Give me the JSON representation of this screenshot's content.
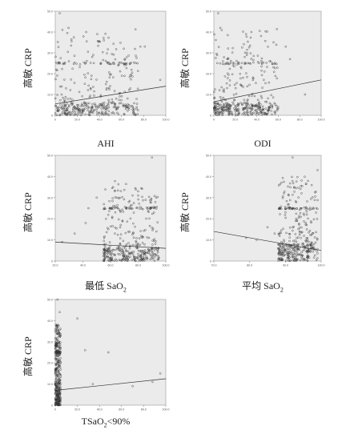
{
  "chart_data": [
    {
      "type": "scatter",
      "ylabel": "高敏 CRP",
      "xlabel": "AHI",
      "xlim": [
        0,
        100
      ],
      "ylim": [
        0,
        50
      ],
      "xticks": [
        "0",
        "20.0",
        "40.0",
        "60.0",
        "80.0",
        "100.0"
      ],
      "yticks": [
        "0",
        "10.0",
        "20.0",
        "30.0",
        "40.0",
        "50.0"
      ],
      "fit_line": {
        "x": [
          0,
          100
        ],
        "y": [
          5.5,
          14.0
        ]
      },
      "cluster": {
        "x_range": [
          0,
          75
        ],
        "y_dense": [
          0,
          6
        ],
        "y_sparse": [
          6,
          42
        ]
      },
      "bands": [
        25
      ],
      "n_points": 420,
      "grid": false,
      "series": [
        {
          "points": [
            [
              4,
              49
            ],
            [
              12,
              42
            ],
            [
              28,
              40
            ],
            [
              38,
              39
            ],
            [
              44,
              36
            ],
            [
              57,
              24
            ],
            [
              62,
              32
            ],
            [
              77,
              33
            ],
            [
              81,
              33
            ],
            [
              95,
              17
            ]
          ]
        }
      ]
    },
    {
      "type": "scatter",
      "ylabel": "高敏 CRP",
      "xlabel": "ODI",
      "xlim": [
        0,
        100
      ],
      "ylim": [
        0,
        50
      ],
      "xticks": [
        "0",
        "20.0",
        "40.0",
        "60.0",
        "80.0",
        "100.0"
      ],
      "yticks": [
        "0",
        "10.0",
        "20.0",
        "30.0",
        "40.0",
        "50.0"
      ],
      "fit_line": {
        "x": [
          0,
          100
        ],
        "y": [
          6.5,
          17.0
        ]
      },
      "cluster": {
        "x_range": [
          0,
          60
        ],
        "y_dense": [
          0,
          6
        ],
        "y_sparse": [
          6,
          42
        ]
      },
      "bands": [
        25
      ],
      "n_points": 420,
      "grid": false,
      "series": [
        {
          "points": [
            [
              4,
              49
            ],
            [
              6,
              42
            ],
            [
              30,
              39
            ],
            [
              35,
              40
            ],
            [
              52,
              26
            ],
            [
              67,
              33
            ],
            [
              71,
              27
            ],
            [
              85,
              10
            ]
          ]
        }
      ]
    },
    {
      "type": "scatter",
      "ylabel": "高敏 CRP",
      "xlabel": "最低 SaO2",
      "xlim": [
        20,
        100
      ],
      "ylim": [
        0,
        50
      ],
      "xticks": [
        "20.0",
        "40.0",
        "60.0",
        "80.0",
        "100.0"
      ],
      "yticks": [
        "0",
        "10.0",
        "20.0",
        "30.0",
        "40.0",
        "50.0"
      ],
      "fit_line": {
        "x": [
          20,
          100
        ],
        "y": [
          9.0,
          6.0
        ]
      },
      "cluster": {
        "x_range": [
          55,
          95
        ],
        "y_dense": [
          0,
          6
        ],
        "y_sparse": [
          6,
          38
        ]
      },
      "bands": [
        25
      ],
      "n_points": 420,
      "grid": false,
      "series": [
        {
          "points": [
            [
              25,
              9
            ],
            [
              34,
              13
            ],
            [
              42,
              18
            ],
            [
              44,
              25
            ],
            [
              50,
              30
            ],
            [
              62,
              26
            ],
            [
              80,
              31
            ],
            [
              90,
              49
            ]
          ]
        }
      ]
    },
    {
      "type": "scatter",
      "ylabel": "高敏 CRP",
      "xlabel": "平均 SaO2",
      "xlim": [
        70,
        100
      ],
      "ylim": [
        0,
        50
      ],
      "xticks": [
        "70.0",
        "80.0",
        "90.0",
        "100.0"
      ],
      "yticks": [
        "0",
        "10.0",
        "20.0",
        "30.0",
        "40.0",
        "50.0"
      ],
      "fit_line": {
        "x": [
          70,
          100
        ],
        "y": [
          14.0,
          5.0
        ]
      },
      "cluster": {
        "x_range": [
          88,
          99
        ],
        "y_dense": [
          0,
          8
        ],
        "y_sparse": [
          8,
          40
        ]
      },
      "bands": [
        25
      ],
      "n_points": 400,
      "grid": false,
      "series": [
        {
          "points": [
            [
              79,
              11
            ],
            [
              82,
              10
            ],
            [
              85,
              16
            ],
            [
              87,
              13
            ],
            [
              92,
              49
            ],
            [
              93,
              20
            ],
            [
              96,
              22
            ],
            [
              99,
              43
            ]
          ]
        }
      ]
    },
    {
      "type": "scatter",
      "ylabel": "高敏 CRP",
      "xlabel": "TSaO2<90%",
      "xlim": [
        0,
        100
      ],
      "ylim": [
        0,
        50
      ],
      "xticks": [
        "0",
        "20.0",
        "40.0",
        "60.0",
        "80.0",
        "100.0"
      ],
      "yticks": [
        "0",
        "10.0",
        "20.0",
        "30.0",
        "40.0",
        "50.0"
      ],
      "fit_line": {
        "x": [
          0,
          100
        ],
        "y": [
          7.0,
          12.5
        ]
      },
      "cluster": {
        "x_range": [
          0,
          5
        ],
        "y_dense": [
          0,
          38
        ],
        "y_sparse": [
          0,
          10
        ]
      },
      "bands": [
        25
      ],
      "n_points": 380,
      "grid": false,
      "series": [
        {
          "points": [
            [
              2,
              50
            ],
            [
              4,
              44
            ],
            [
              20,
              41
            ],
            [
              27,
              26
            ],
            [
              34,
              10
            ],
            [
              48,
              25
            ],
            [
              70,
              9
            ],
            [
              88,
              11
            ],
            [
              95,
              15
            ]
          ]
        }
      ]
    }
  ]
}
